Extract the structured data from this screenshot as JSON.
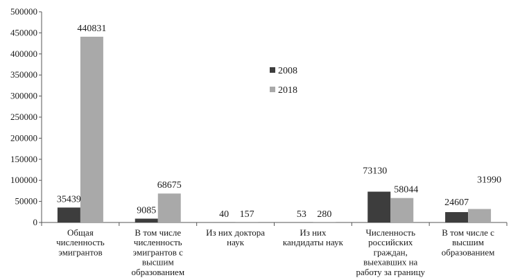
{
  "chart_data": {
    "type": "bar",
    "title": "",
    "xlabel": "",
    "ylabel": "",
    "ylim": [
      0,
      500000
    ],
    "yticks": [
      "0",
      "50000",
      "100000",
      "150000",
      "200000",
      "250000",
      "300000",
      "350000",
      "400000",
      "450000",
      "500000"
    ],
    "grid": false,
    "legend_position": "center",
    "categories": [
      [
        "Общая",
        "численность",
        "эмигрантов"
      ],
      [
        "В том числе",
        "численность",
        "эмигрантов с",
        "высшим",
        "образованием"
      ],
      [
        "Из них доктора",
        "наук"
      ],
      [
        "Из них",
        "кандидаты наук"
      ],
      [
        "Численность",
        "российских",
        "граждан,",
        "выехавших на",
        "работу за границу"
      ],
      [
        "В том числе с",
        "высшим",
        "образованием"
      ]
    ],
    "series": [
      {
        "name": "2008",
        "color": "#3d3d3d",
        "values": [
          35439,
          9085,
          40,
          53,
          73130,
          24607
        ],
        "labels": [
          "35439",
          "9085",
          "40",
          "53",
          "73130",
          "24607"
        ]
      },
      {
        "name": "2018",
        "color": "#a9a9a9",
        "values": [
          440831,
          68675,
          157,
          280,
          58044,
          31990
        ],
        "labels": [
          "440831",
          "68675",
          "157",
          "280",
          "58044",
          "31990"
        ]
      }
    ]
  }
}
